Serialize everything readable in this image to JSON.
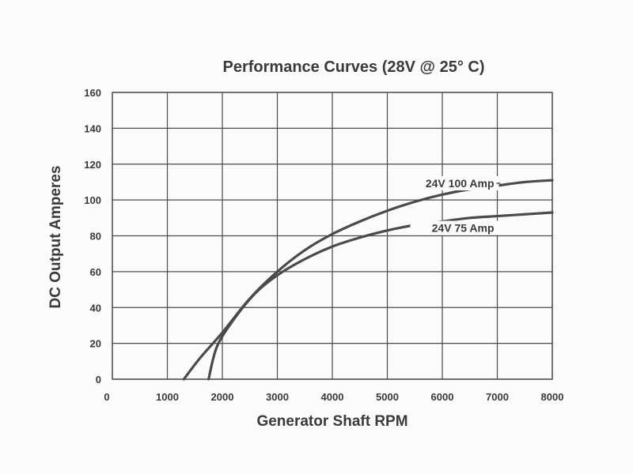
{
  "chart_data": {
    "type": "line",
    "title": "Performance Curves (28V @ 25° C)",
    "xlabel": "Generator Shaft RPM",
    "ylabel": "DC Output Amperes",
    "xlim": [
      0,
      8000
    ],
    "ylim": [
      0,
      160
    ],
    "x_ticks": [
      0,
      1000,
      2000,
      3000,
      4000,
      5000,
      6000,
      7000,
      8000
    ],
    "y_ticks": [
      0,
      20,
      40,
      60,
      80,
      100,
      120,
      140,
      160
    ],
    "grid": true,
    "series": [
      {
        "name": "24V 100 Amp",
        "x": [
          1300,
          1600,
          2000,
          2500,
          3000,
          3500,
          4000,
          4500,
          5000,
          5500,
          6000,
          6500,
          7000,
          7500,
          8000
        ],
        "y": [
          0,
          12,
          26,
          45,
          60,
          72,
          81,
          88,
          94,
          99,
          103,
          106,
          108,
          110,
          111
        ]
      },
      {
        "name": "24V 75 Amp",
        "x": [
          1750,
          1900,
          2200,
          2600,
          3000,
          3500,
          4000,
          4500,
          5000,
          5500,
          6000,
          6500,
          7000,
          7500,
          8000
        ],
        "y": [
          0,
          18,
          33,
          48,
          58,
          67,
          74,
          79,
          83,
          86,
          88,
          90,
          91,
          92,
          93
        ]
      }
    ],
    "label_anchor_x": [
      7000,
      7000
    ]
  }
}
